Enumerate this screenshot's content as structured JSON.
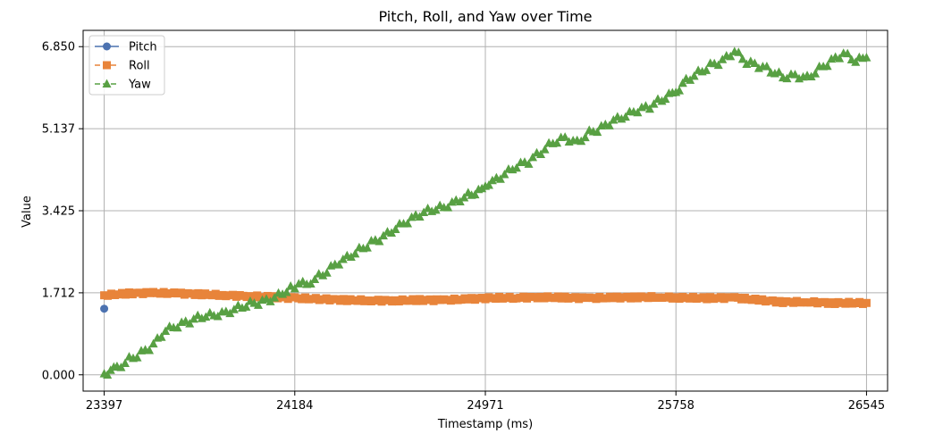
{
  "chart_data": {
    "type": "line",
    "title": "Pitch, Roll, and Yaw over Time",
    "xlabel": "Timestamp (ms)",
    "ylabel": "Value",
    "xlim": [
      23310,
      26632
    ],
    "ylim": [
      -0.34,
      7.19
    ],
    "xticks": [
      23397,
      24184,
      24971,
      25758,
      26545
    ],
    "xtick_labels": [
      "23397",
      "24184",
      "24971",
      "25758",
      "26545"
    ],
    "yticks": [
      0.0,
      1.712,
      3.425,
      5.137,
      6.85
    ],
    "ytick_labels": [
      "0.000",
      "1.712",
      "3.425",
      "5.137",
      "6.850"
    ],
    "grid": true,
    "legend_position": "top-left",
    "series": [
      {
        "name": "Pitch",
        "color": "#4c72b0",
        "marker": "circle",
        "linestyle": "solid",
        "x": [
          23397
        ],
        "y": [
          1.38
        ]
      },
      {
        "name": "Roll",
        "color": "#e8843a",
        "marker": "square",
        "linestyle": "dashed",
        "x": [
          23397,
          23500,
          23600,
          23700,
          23800,
          23900,
          24000,
          24100,
          24184,
          24300,
          24400,
          24500,
          24600,
          24700,
          24800,
          24900,
          24971,
          25100,
          25200,
          25300,
          25400,
          25500,
          25600,
          25700,
          25758,
          25900,
          26000,
          26100,
          26200,
          26300,
          26400,
          26545
        ],
        "y": [
          1.66,
          1.7,
          1.71,
          1.7,
          1.68,
          1.66,
          1.64,
          1.62,
          1.6,
          1.58,
          1.56,
          1.55,
          1.55,
          1.56,
          1.56,
          1.58,
          1.6,
          1.61,
          1.62,
          1.61,
          1.6,
          1.61,
          1.62,
          1.62,
          1.61,
          1.6,
          1.61,
          1.56,
          1.52,
          1.52,
          1.5,
          1.5
        ]
      },
      {
        "name": "Yaw",
        "color": "#58a043",
        "marker": "triangle",
        "linestyle": "dashed",
        "x": [
          23397,
          23450,
          23500,
          23550,
          23600,
          23650,
          23700,
          23750,
          23800,
          23850,
          23900,
          23950,
          24000,
          24050,
          24100,
          24150,
          24184,
          24250,
          24300,
          24350,
          24400,
          24450,
          24500,
          24550,
          24600,
          24650,
          24700,
          24750,
          24800,
          24850,
          24900,
          24971,
          25000,
          25050,
          25100,
          25150,
          25200,
          25250,
          25300,
          25350,
          25400,
          25450,
          25500,
          25550,
          25600,
          25650,
          25700,
          25758,
          25800,
          25850,
          25900,
          25950,
          26000,
          26050,
          26100,
          26150,
          26200,
          26250,
          26300,
          26350,
          26400,
          26450,
          26500,
          26545
        ],
        "y": [
          0.02,
          0.14,
          0.32,
          0.45,
          0.62,
          0.92,
          1.02,
          1.12,
          1.22,
          1.25,
          1.3,
          1.4,
          1.48,
          1.52,
          1.6,
          1.75,
          1.85,
          1.95,
          2.1,
          2.3,
          2.45,
          2.6,
          2.75,
          2.88,
          3.05,
          3.2,
          3.35,
          3.45,
          3.5,
          3.62,
          3.75,
          3.88,
          4.02,
          4.18,
          4.35,
          4.45,
          4.65,
          4.85,
          4.95,
          4.85,
          5.05,
          5.15,
          5.3,
          5.4,
          5.52,
          5.6,
          5.75,
          5.9,
          6.15,
          6.3,
          6.45,
          6.55,
          6.75,
          6.52,
          6.45,
          6.35,
          6.22,
          6.25,
          6.2,
          6.38,
          6.55,
          6.7,
          6.55,
          6.62
        ]
      }
    ]
  }
}
